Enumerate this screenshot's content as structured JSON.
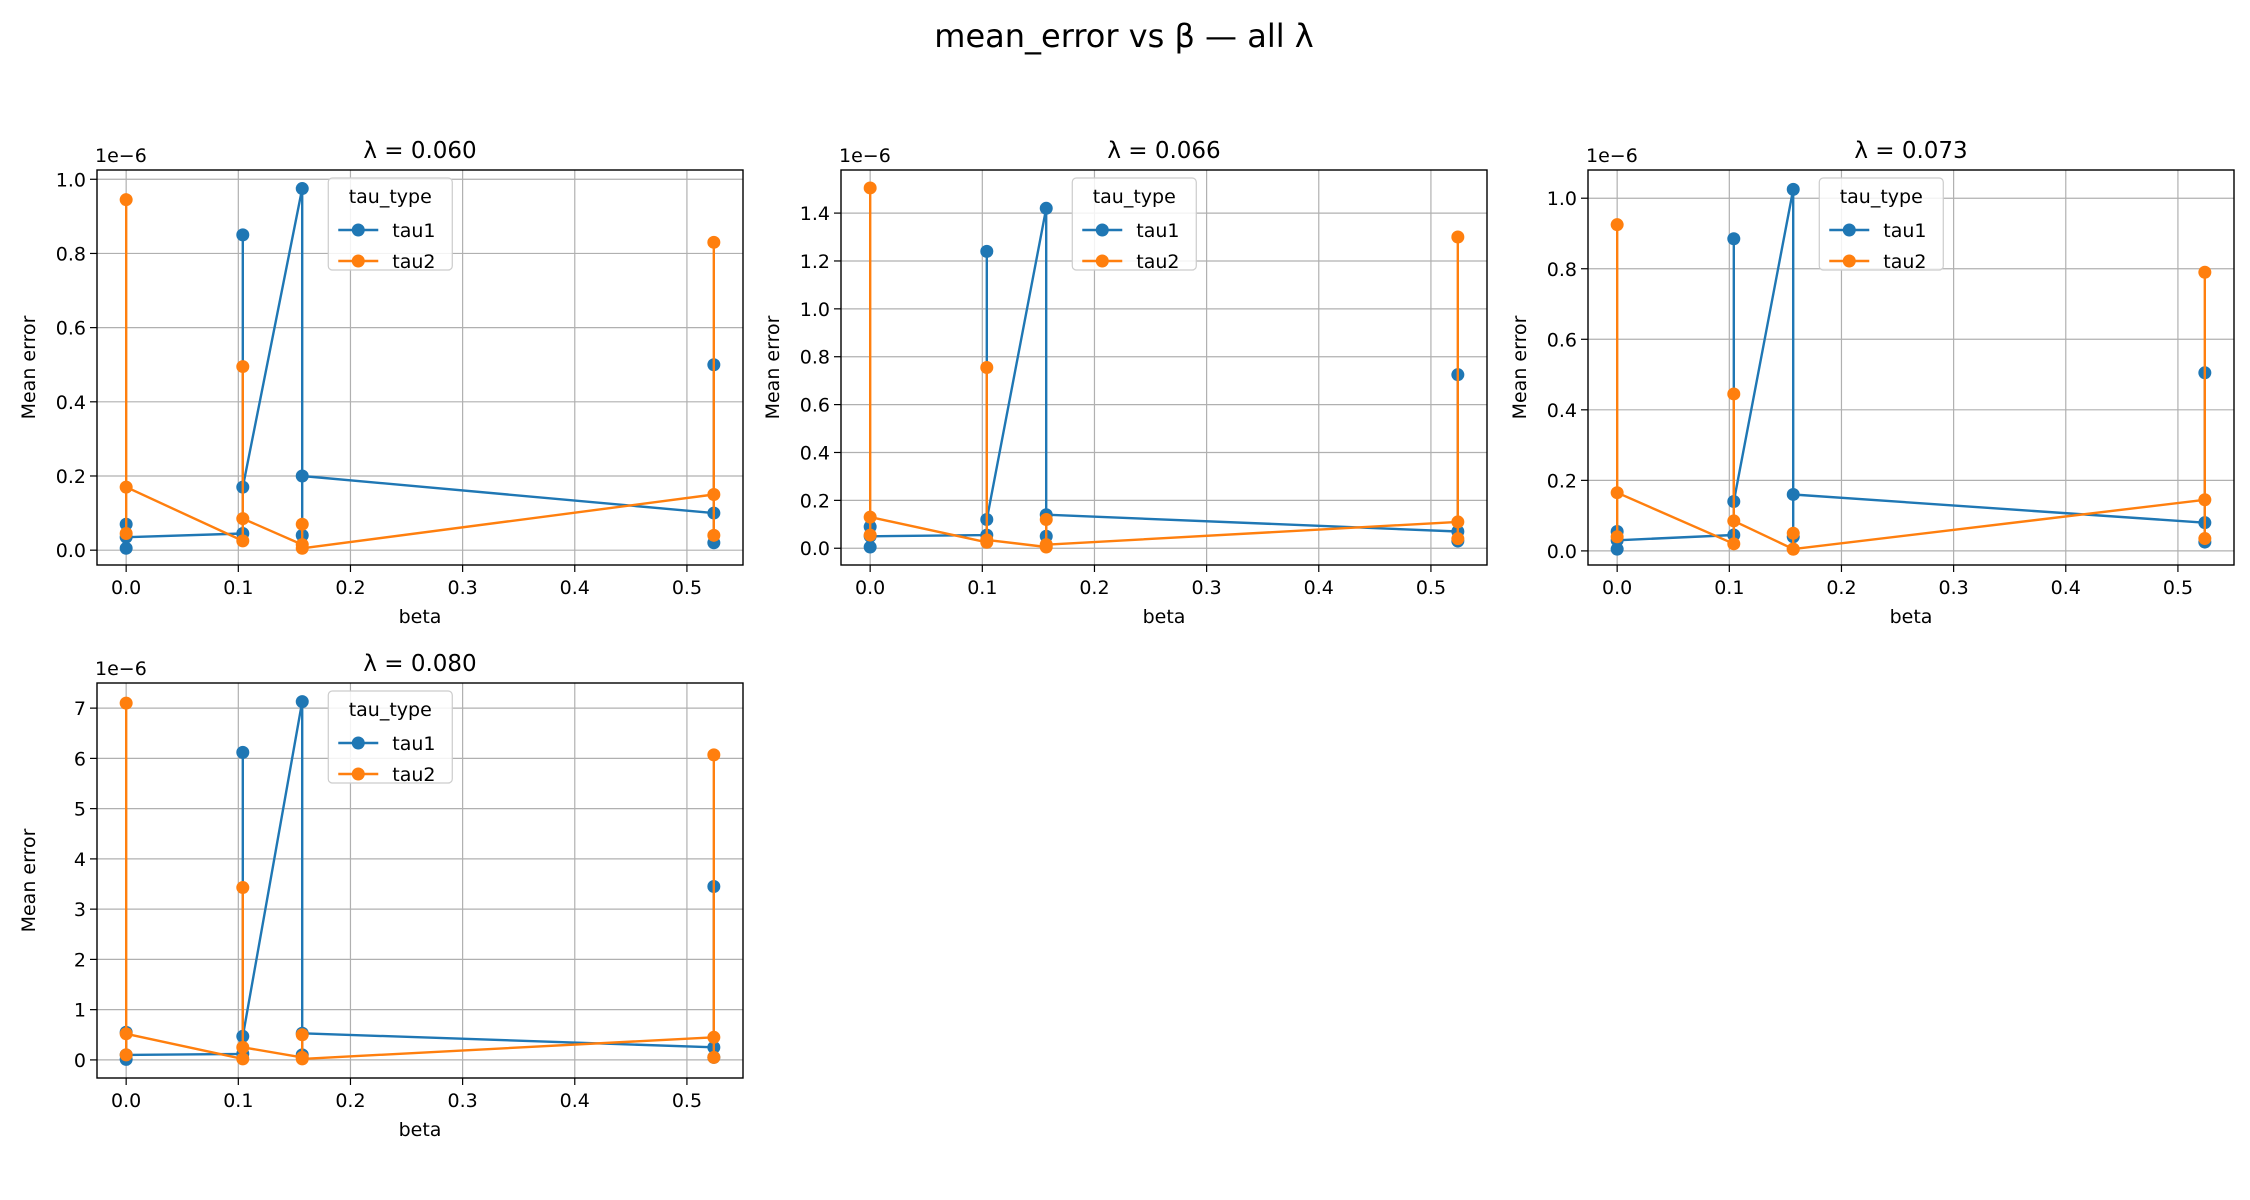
{
  "suptitle": "mean_error vs β — all λ",
  "colors": {
    "tau1": "#1f77b4",
    "tau2": "#ff7f0e",
    "grid": "#b0b0b0",
    "axes": "#000000"
  },
  "chart_data": [
    {
      "type": "line",
      "title": "λ = 0.060",
      "xlabel": "beta",
      "ylabel": "Mean error",
      "exponent_label": "1e−6",
      "xlim": [
        -0.026,
        0.55
      ],
      "ylim": [
        -0.04,
        1.025
      ],
      "xticks": [
        0.0,
        0.1,
        0.2,
        0.3,
        0.4,
        0.5
      ],
      "xtick_labels": [
        "0.0",
        "0.1",
        "0.2",
        "0.3",
        "0.4",
        "0.5"
      ],
      "yticks": [
        0.0,
        0.2,
        0.4,
        0.6,
        0.8,
        1.0
      ],
      "ytick_labels": [
        "0.0",
        "0.2",
        "0.4",
        "0.6",
        "0.8",
        "1.0"
      ],
      "grid": true,
      "legend": {
        "title": "tau_type",
        "placement": "upper-center"
      },
      "series": [
        {
          "name": "tau1",
          "x": [
            0.0,
            0.0,
            0.0,
            0.104,
            0.104,
            0.104,
            0.157,
            0.157,
            0.157,
            0.524,
            0.524,
            0.524
          ],
          "y": [
            0.005,
            0.07,
            0.035,
            0.045,
            0.85,
            0.17,
            0.975,
            0.04,
            0.2,
            0.1,
            0.5,
            0.02
          ]
        },
        {
          "name": "tau2",
          "x": [
            0.0,
            0.0,
            0.0,
            0.104,
            0.104,
            0.104,
            0.157,
            0.157,
            0.157,
            0.524,
            0.524,
            0.524
          ],
          "y": [
            0.045,
            0.945,
            0.17,
            0.025,
            0.495,
            0.085,
            0.015,
            0.07,
            0.005,
            0.15,
            0.83,
            0.04
          ]
        }
      ]
    },
    {
      "type": "line",
      "title": "λ = 0.066",
      "xlabel": "beta",
      "ylabel": "Mean error",
      "exponent_label": "1e−6",
      "xlim": [
        -0.026,
        0.55
      ],
      "ylim": [
        -0.07,
        1.58
      ],
      "xticks": [
        0.0,
        0.1,
        0.2,
        0.3,
        0.4,
        0.5
      ],
      "xtick_labels": [
        "0.0",
        "0.1",
        "0.2",
        "0.3",
        "0.4",
        "0.5"
      ],
      "yticks": [
        0.0,
        0.2,
        0.4,
        0.6,
        0.8,
        1.0,
        1.2,
        1.4
      ],
      "ytick_labels": [
        "0.0",
        "0.2",
        "0.4",
        "0.6",
        "0.8",
        "1.0",
        "1.2",
        "1.4"
      ],
      "grid": true,
      "legend": {
        "title": "tau_type",
        "placement": "upper-center"
      },
      "series": [
        {
          "name": "tau1",
          "x": [
            0.0,
            0.0,
            0.0,
            0.104,
            0.104,
            0.104,
            0.157,
            0.157,
            0.157,
            0.524,
            0.524,
            0.524
          ],
          "y": [
            0.005,
            0.09,
            0.05,
            0.055,
            1.24,
            0.12,
            1.42,
            0.05,
            0.14,
            0.07,
            0.725,
            0.03
          ]
        },
        {
          "name": "tau2",
          "x": [
            0.0,
            0.0,
            0.0,
            0.104,
            0.104,
            0.104,
            0.157,
            0.157,
            0.157,
            0.524,
            0.524,
            0.524
          ],
          "y": [
            0.055,
            1.505,
            0.13,
            0.025,
            0.755,
            0.035,
            0.005,
            0.12,
            0.015,
            0.11,
            1.3,
            0.04
          ]
        }
      ]
    },
    {
      "type": "line",
      "title": "λ = 0.073",
      "xlabel": "beta",
      "ylabel": "Mean error",
      "exponent_label": "1e−6",
      "xlim": [
        -0.026,
        0.55
      ],
      "ylim": [
        -0.04,
        1.08
      ],
      "xticks": [
        0.0,
        0.1,
        0.2,
        0.3,
        0.4,
        0.5
      ],
      "xtick_labels": [
        "0.0",
        "0.1",
        "0.2",
        "0.3",
        "0.4",
        "0.5"
      ],
      "yticks": [
        0.0,
        0.2,
        0.4,
        0.6,
        0.8,
        1.0
      ],
      "ytick_labels": [
        "0.0",
        "0.2",
        "0.4",
        "0.6",
        "0.8",
        "1.0"
      ],
      "grid": true,
      "legend": {
        "title": "tau_type",
        "placement": "upper-center"
      },
      "series": [
        {
          "name": "tau1",
          "x": [
            0.0,
            0.0,
            0.0,
            0.104,
            0.104,
            0.104,
            0.157,
            0.157,
            0.157,
            0.524,
            0.524,
            0.524
          ],
          "y": [
            0.005,
            0.055,
            0.03,
            0.045,
            0.885,
            0.14,
            1.025,
            0.04,
            0.16,
            0.08,
            0.505,
            0.025
          ]
        },
        {
          "name": "tau2",
          "x": [
            0.0,
            0.0,
            0.0,
            0.104,
            0.104,
            0.104,
            0.157,
            0.157,
            0.157,
            0.524,
            0.524,
            0.524
          ],
          "y": [
            0.04,
            0.925,
            0.165,
            0.02,
            0.445,
            0.085,
            0.005,
            0.05,
            0.005,
            0.145,
            0.79,
            0.035
          ]
        }
      ]
    },
    {
      "type": "line",
      "title": "λ = 0.080",
      "xlabel": "beta",
      "ylabel": "Mean error",
      "exponent_label": "1e−6",
      "xlim": [
        -0.026,
        0.55
      ],
      "ylim": [
        -0.36,
        7.5
      ],
      "xticks": [
        0.0,
        0.1,
        0.2,
        0.3,
        0.4,
        0.5
      ],
      "xtick_labels": [
        "0.0",
        "0.1",
        "0.2",
        "0.3",
        "0.4",
        "0.5"
      ],
      "yticks": [
        0,
        1,
        2,
        3,
        4,
        5,
        6,
        7
      ],
      "ytick_labels": [
        "0",
        "1",
        "2",
        "3",
        "4",
        "5",
        "6",
        "7"
      ],
      "grid": true,
      "legend": {
        "title": "tau_type",
        "placement": "upper-center"
      },
      "series": [
        {
          "name": "tau1",
          "x": [
            0.0,
            0.0,
            0.0,
            0.104,
            0.104,
            0.104,
            0.157,
            0.157,
            0.157,
            0.524,
            0.524,
            0.524
          ],
          "y": [
            0.01,
            0.55,
            0.1,
            0.12,
            6.12,
            0.47,
            7.13,
            0.1,
            0.53,
            0.25,
            3.45,
            0.05
          ]
        },
        {
          "name": "tau2",
          "x": [
            0.0,
            0.0,
            0.0,
            0.104,
            0.104,
            0.104,
            0.157,
            0.157,
            0.157,
            0.524,
            0.524,
            0.524
          ],
          "y": [
            0.1,
            7.1,
            0.52,
            0.02,
            3.43,
            0.25,
            0.05,
            0.5,
            0.02,
            0.45,
            6.07,
            0.05
          ]
        }
      ]
    }
  ]
}
